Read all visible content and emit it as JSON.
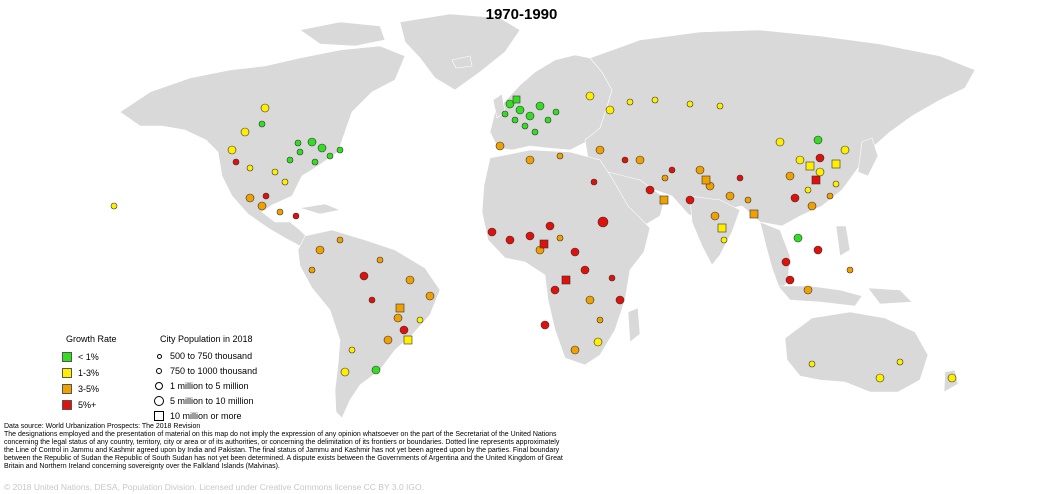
{
  "title": "1970-1990",
  "colors": {
    "ocean": "#ffffff",
    "land": "#d9d9d9",
    "border": "#ffffff",
    "under_1": "#33dd22",
    "one_to_three": "#ffee00",
    "three_to_five": "#f0a000",
    "five_plus": "#e0100a"
  },
  "legend": {
    "growth": {
      "title": "Growth Rate",
      "items": [
        {
          "label": "< 1%",
          "color": "#33dd22"
        },
        {
          "label": "1-3%",
          "color": "#ffee00"
        },
        {
          "label": "3-5%",
          "color": "#f0a000"
        },
        {
          "label": "5%+",
          "color": "#e0100a"
        }
      ]
    },
    "population": {
      "title": "City Population in 2018",
      "items": [
        {
          "label": "500 to 750 thousand",
          "symbol": "circle-xs"
        },
        {
          "label": "750 to 1000 thousand",
          "symbol": "circle-s"
        },
        {
          "label": "1 million to 5 million",
          "symbol": "circle-m"
        },
        {
          "label": "5 million to 10 million",
          "symbol": "circle-l"
        },
        {
          "label": "10 million or more",
          "symbol": "square"
        }
      ]
    }
  },
  "source": "Data source: World Urbanization Prospects: The 2018 Revision",
  "disclaimer": "The designations employed and the presentation of material on this map do not imply the expression of any opinion whatsoever on the part of the Secretariat of the United Nations concerning the legal status of any country, territory, city or area or of its authorities, or concerning the delimitation of its frontiers or boundaries. Dotted line represents approximately the Line of Control in Jammu and Kashmir agreed upon by India and Pakistan. The final status of Jammu and Kashmir has not yet been agreed upon by the parties. Final boundary between the Republic of Sudan the Republic of South Sudan has not yet been determined. A dispute exists between the Governments of Argentina and the United Kingdom of Great Britain and Northern Ireland concerning sovereignty over the Falkland Islands (Malvinas).",
  "copyright": "© 2018 United Nations, DESA, Population Division. Licensed under Creative Commons license CC BY 3.0 IGO."
}
